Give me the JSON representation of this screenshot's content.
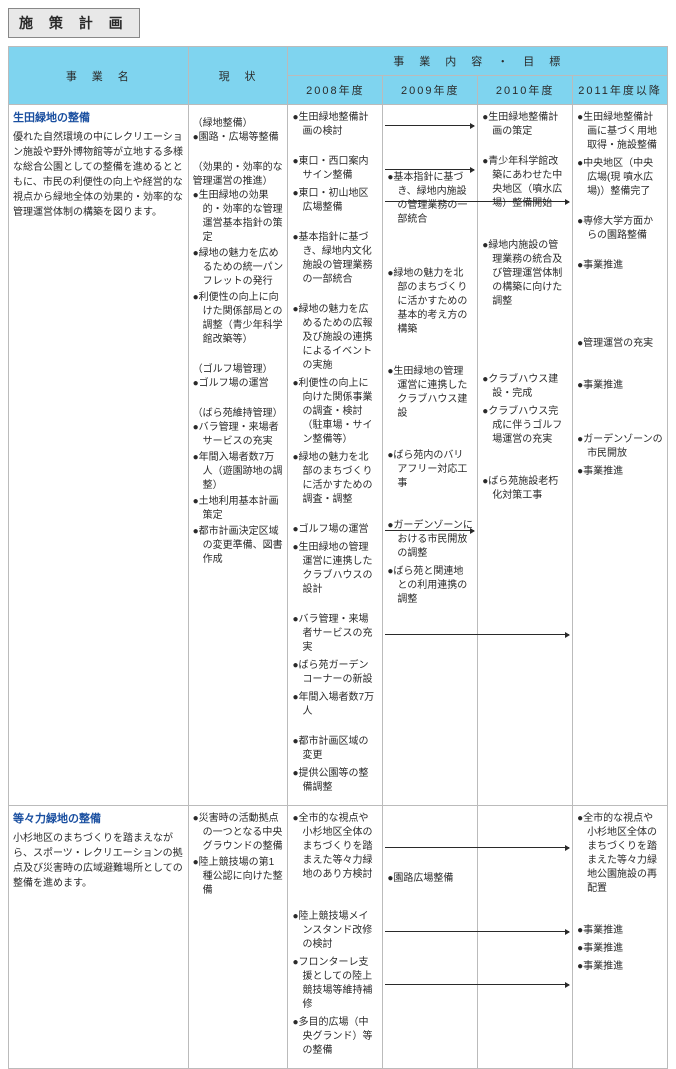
{
  "page_title": "施 策 計 画",
  "headers": {
    "project_name": "事　業　名",
    "status": "現　状",
    "content_goal": "事　業　内　容　・　目　標",
    "y2008": "2008年度",
    "y2009": "2009年度",
    "y2010": "2010年度",
    "y2011": "2011年度以降"
  },
  "rows": [
    {
      "title": "生田緑地の整備",
      "desc": "優れた自然環境の中にレクリエーション施設や野外博物館等が立地する多様な総合公園としての整備を進めるとともに、市民の利便性の向上や経営的な視点から緑地全体の効果的・効率的な管理運営体制の構築を図ります。",
      "status_groups": [
        {
          "head": "（緑地整備）",
          "items": [
            "●園路・広場等整備"
          ]
        },
        {
          "head": "（効果的・効率的な管理運営の推進）",
          "items": [
            "●生田緑地の効果的・効率的な管理運営基本指針の策定",
            "●緑地の魅力を広めるための統一パンフレットの発行",
            "●利便性の向上に向けた関係部局との調整（青少年科学館改築等）"
          ]
        },
        {
          "head": "（ゴルフ場管理）",
          "items": [
            "●ゴルフ場の運営"
          ]
        },
        {
          "head": "（ばら苑維持管理）",
          "items": [
            "●バラ管理・来場者サービスの充実",
            "●年間入場者数7万人（遊園跡地の調整）",
            "●土地利用基本計画策定",
            "●都市計画決定区域の変更準備、図書作成"
          ]
        }
      ],
      "y2008": [
        "●生田緑地整備計画の検討",
        "",
        "●東口・西口案内サイン整備",
        "●東口・初山地区広場整備",
        "",
        "●基本指針に基づき、緑地内文化施設の管理業務の一部統合",
        "",
        "●緑地の魅力を広めるための広報及び施設の連携によるイベントの実施",
        "●利便性の向上に向けた関係事業の調査・検討（駐車場・サイン整備等）",
        "●緑地の魅力を北部のまちづくりに活かすための調査・調整",
        "",
        "●ゴルフ場の運営",
        "●生田緑地の管理運営に連携したクラブハウスの設計",
        "",
        "●バラ管理・来場者サービスの充実",
        "●ばら苑ガーデンコーナーの新設",
        "●年間入場者数7万人",
        "",
        "●都市計画区域の変更",
        "●提供公園等の整備調整"
      ],
      "y2009": [
        "",
        "",
        "",
        "",
        "",
        "●基本指針に基づき、緑地内施設の管理業務の一部統合",
        "",
        "",
        "",
        "●緑地の魅力を北部のまちづくりに活かすための基本的考え方の構築",
        "",
        "",
        "●生田緑地の管理運営に連携したクラブハウス建設",
        "",
        "",
        "●ばら苑内のバリアフリー対応工事",
        "",
        "",
        "●ガーデンゾーンにおける市民開放の調整",
        "●ばら苑と関連地との利用連携の調整"
      ],
      "y2010": [
        "●生田緑地整備計画の策定",
        "",
        "●青少年科学館改築にあわせた中央地区（噴水広場）整備開始",
        "",
        "",
        "●緑地内施設の管理業務の統合及び管理運営体制の構築に向けた調整",
        "",
        "",
        "",
        "",
        "",
        "●クラブハウス建設・完成",
        "●クラブハウス完成に伴うゴルフ場運営の充実",
        "",
        "",
        "●ばら苑施設老朽化対策工事",
        "",
        "",
        "",
        ""
      ],
      "y2011": [
        "●生田緑地整備計画に基づく用地取得・施設整備",
        "●中央地区（中央広場(現 噴水広場)）整備完了",
        "",
        "●専修大学方面からの園路整備",
        "",
        "●事業推進",
        "",
        "",
        "",
        "",
        "",
        "●管理運営の充実",
        "",
        "",
        "●事業推進",
        "",
        "",
        "",
        "●ガーデンゾーンの市民開放",
        "●事業推進"
      ]
    },
    {
      "title": "等々力緑地の整備",
      "desc": "小杉地区のまちづくりを踏まえながら、スポーツ・レクリエーションの拠点及び災害時の広域避難場所としての整備を進めます。",
      "status_groups": [
        {
          "head": "",
          "items": [
            "●災害時の活動拠点の一つとなる中央グラウンドの整備",
            "●陸上競技場の第1種公認に向けた整備"
          ]
        }
      ],
      "y2008": [
        "●全市的な視点や小杉地区全体のまちづくりを踏まえた等々力緑地のあり方検討",
        "",
        "",
        "●陸上競技場メインスタンド改修の検討",
        "●フロンターレ支援としての陸上競技場等維持補修",
        "●多目的広場（中央グランド）等の整備"
      ],
      "y2009": [
        "",
        "",
        "",
        "",
        "",
        "●園路広場整備"
      ],
      "y2010": [
        "",
        "",
        "",
        "",
        "",
        ""
      ],
      "y2011": [
        "●全市的な視点や小杉地区全体のまちづくりを踏まえた等々力緑地公園施設の再配置",
        "",
        "",
        "●事業推進",
        "●事業推進",
        "●事業推進"
      ]
    }
  ],
  "colors": {
    "header_bg": "#7fd4ef",
    "title_link": "#1a4fa0",
    "title_box_bg": "#e8e8e8",
    "border": "#bbbbbb"
  }
}
